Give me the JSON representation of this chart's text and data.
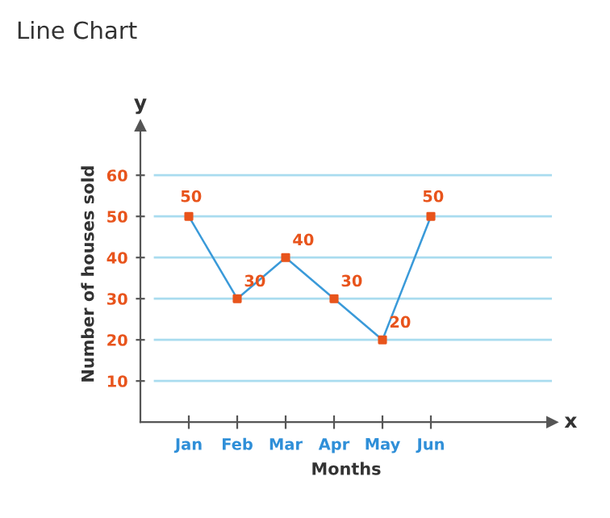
{
  "chart_data": {
    "type": "line",
    "title": "Line Chart",
    "xlabel": "Months",
    "ylabel": "Number of houses sold",
    "annotations": [
      "x",
      "y"
    ],
    "categories": [
      "Jan",
      "Feb",
      "Mar",
      "Apr",
      "May",
      "Jun"
    ],
    "series": [
      {
        "color": "#3a9ad9",
        "values": [
          50,
          30,
          40,
          30,
          20,
          50
        ]
      }
    ],
    "ylim": [
      0,
      72
    ],
    "yticks": [
      10,
      20,
      30,
      40,
      50,
      60
    ],
    "grid": "y",
    "marker": "square",
    "line_style": "solid",
    "data_labels": true
  }
}
